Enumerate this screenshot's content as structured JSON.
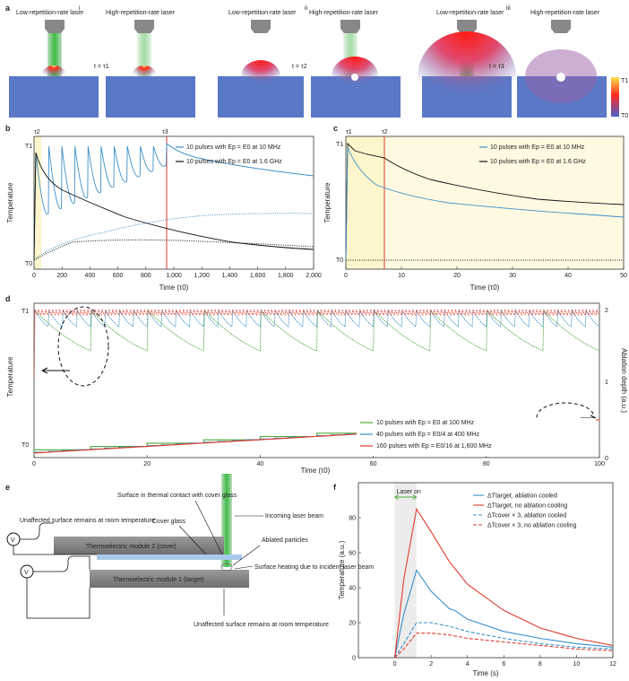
{
  "panel_a": {
    "label": "a",
    "subpanels": [
      {
        "roman": "i",
        "left_caption": "Low-repetition-rate laser",
        "right_caption": "High-repetition-rate laser",
        "time_label": "t = τ1"
      },
      {
        "roman": "ii",
        "left_caption": "Low-repetition-rate laser",
        "right_caption": "High-repetition-rate laser",
        "time_label": "t = τ2"
      },
      {
        "roman": "iii",
        "left_caption": "Low-repetition-rate laser",
        "right_caption": "High-repetition-rate laser",
        "time_label": "t = τ3"
      }
    ],
    "colorbar_top": "T1",
    "colorbar_bottom": "T0"
  },
  "panel_b": {
    "label": "b",
    "ylabel": "Temperature",
    "xlabel": "Time (τ0)",
    "y_top": "T1",
    "y_bottom": "T0",
    "marker_left": "τ2",
    "marker_right": "τ3",
    "legend": [
      "10 pulses with Ep = E0 at 10 MHz",
      "10 pulses with Ep = E0 at 1.6 GHz"
    ],
    "xticks": [
      "0",
      "200",
      "400",
      "600",
      "800",
      "1,000",
      "1,200",
      "1,400",
      "1,600",
      "1,800",
      "2,000"
    ]
  },
  "panel_c": {
    "label": "c",
    "ylabel": "Temperature",
    "xlabel": "Time (τ0)",
    "y_top": "T1",
    "y_bottom": "T0",
    "marker_left": "τ1",
    "marker_right": "τ2",
    "legend": [
      "10 pulses with Ep = E0 at 10 MHz",
      "10 pulses with Ep = E0 at 1.6 GHz"
    ],
    "xticks": [
      "0",
      "10",
      "20",
      "30",
      "40",
      "50"
    ]
  },
  "panel_d": {
    "label": "d",
    "ylabel": "Temperature",
    "y2label": "Ablation depth (a.u.)",
    "xlabel": "Time (τ0)",
    "y_top": "T1",
    "y_bottom": "T0",
    "legend": [
      "10 pulses with Ep = E0 at 100 MHz",
      "40 pulses with Ep = E0/4 at 400 MHz",
      "160 pulses with Ep = E0/16 at 1,600 MHz"
    ],
    "xticks": [
      "0",
      "20",
      "40",
      "60",
      "80",
      "100"
    ],
    "y2ticks": [
      "0",
      "1",
      "2"
    ]
  },
  "panel_e": {
    "label": "e",
    "surface_thermal": "Surface in thermal contact with cover glass",
    "incoming": "Incoming laser beam",
    "unaffected_top": "Unaffected surface remains at room temperature",
    "cover_glass": "Cover glass",
    "ablated": "Ablated particles",
    "module2": "Thermoelectric module 2 (cover)",
    "module1": "Thermoelectric module 1 (target)",
    "heating": "Surface heating due to incident laser beam",
    "unaffected_bottom": "Unaffected surface remains at room temperature",
    "voltmeter": "V"
  },
  "panel_f": {
    "label": "f",
    "laser_on": "Laser on",
    "ylabel": "Temperature (a.u.)",
    "xlabel": "Time (s)",
    "legend": [
      "ΔTtarget, ablation cooled",
      "ΔTtarget, no ablation cooling",
      "ΔTcover × 3, ablation cooled",
      "ΔTcover × 3, no ablation cooling"
    ],
    "xticks": [
      "0",
      "2",
      "4",
      "6",
      "8",
      "10",
      "12"
    ],
    "yticks": [
      "0",
      "20",
      "40",
      "60",
      "80"
    ]
  },
  "colors": {
    "blue": "#3a8fc9",
    "black": "#111111",
    "red": "#e03c2c",
    "green": "#4caa3c",
    "yellow_bg": "#fdf5cc",
    "substrate": "#5b78c6"
  },
  "chart_data": [
    {
      "type": "line",
      "panel": "f",
      "xlabel": "Time (s)",
      "ylabel": "Temperature (a.u.)",
      "xlim": [
        -2,
        12
      ],
      "ylim": [
        0,
        100
      ],
      "series": [
        {
          "name": "ΔTtarget, ablation cooled",
          "x": [
            0,
            0.5,
            1.2,
            2,
            3,
            3.3,
            4,
            6,
            8,
            10,
            12
          ],
          "y": [
            0,
            25,
            50,
            38,
            28,
            27,
            22,
            15,
            11,
            8,
            6
          ]
        },
        {
          "name": "ΔTtarget, no ablation cooling",
          "x": [
            0,
            0.5,
            1.2,
            2,
            3,
            4,
            6,
            8,
            10,
            12
          ],
          "y": [
            0,
            45,
            85,
            72,
            55,
            42,
            27,
            17,
            11,
            7
          ]
        },
        {
          "name": "ΔTcover × 3, ablation cooled",
          "x": [
            0,
            0.5,
            1.2,
            2,
            3,
            4,
            6,
            8,
            10,
            12
          ],
          "y": [
            0,
            8,
            20,
            20,
            18,
            15,
            11,
            8,
            6,
            5
          ]
        },
        {
          "name": "ΔTcover × 3, no ablation cooling",
          "x": [
            0,
            0.5,
            1.2,
            2,
            3,
            4,
            6,
            8,
            10,
            12
          ],
          "y": [
            0,
            5,
            14,
            14,
            13,
            11,
            9,
            7,
            5,
            4
          ]
        }
      ]
    }
  ]
}
